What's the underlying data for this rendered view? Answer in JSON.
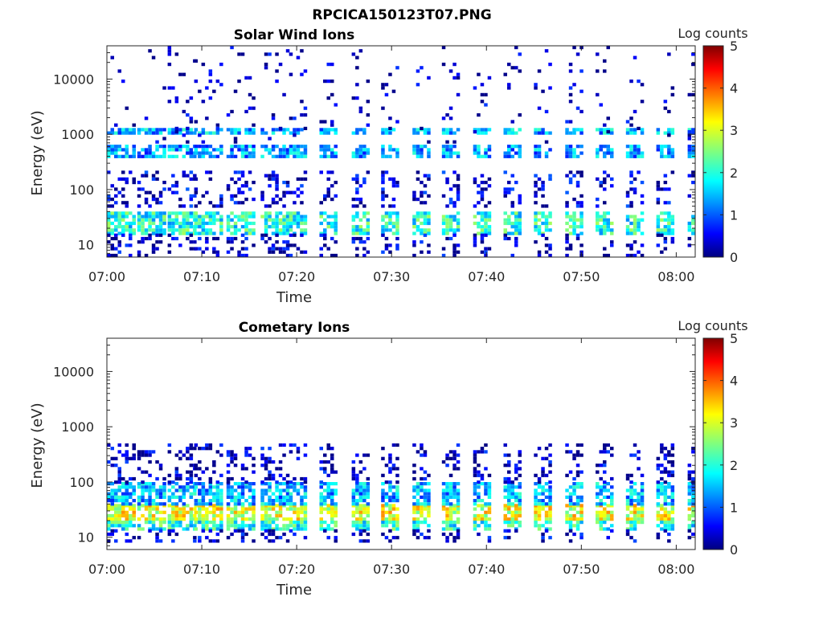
{
  "figure_title": "RPCICA150123T07.PNG",
  "chart_data": [
    {
      "type": "heatmap",
      "title": "Solar Wind Ions",
      "xlabel": "Time",
      "ylabel": "Energy (eV)",
      "x_range": [
        "07:00",
        "08:02"
      ],
      "x_ticks": [
        "07:00",
        "07:10",
        "07:20",
        "07:30",
        "07:40",
        "07:50",
        "08:00"
      ],
      "y_scale": "log",
      "y_range": [
        6,
        40000
      ],
      "y_ticks": [
        "10",
        "100",
        "1000",
        "10000"
      ],
      "colorbar": {
        "label": "Log counts",
        "range": [
          0,
          5
        ],
        "ticks": [
          "0",
          "1",
          "2",
          "3",
          "4",
          "5"
        ],
        "colormap": "jet"
      },
      "sweep_start_minutes": [
        0,
        3.2,
        6.4,
        9.2,
        12.6,
        16.2,
        19.2,
        22.4,
        25.8,
        28.9,
        32.2,
        35.3,
        38.6,
        41.8,
        45.0,
        48.3,
        51.5,
        54.7,
        57.9,
        61.2
      ],
      "bands": [
        {
          "e_min": 17,
          "e_max": 40,
          "log_counts": 2.0
        },
        {
          "e_min": 6,
          "e_max": 16,
          "log_counts": 0.3
        },
        {
          "e_min": 50,
          "e_max": 220,
          "log_counts": 0.4
        },
        {
          "e_min": 380,
          "e_max": 650,
          "log_counts": 1.4
        },
        {
          "e_min": 1100,
          "e_max": 1300,
          "log_counts": 1.5
        },
        {
          "e_min": 700,
          "e_max": 40000,
          "log_counts": 0.2
        }
      ]
    },
    {
      "type": "heatmap",
      "title": "Cometary Ions",
      "xlabel": "Time",
      "ylabel": "Energy (eV)",
      "x_range": [
        "07:00",
        "08:02"
      ],
      "x_ticks": [
        "07:00",
        "07:10",
        "07:20",
        "07:30",
        "07:40",
        "07:50",
        "08:00"
      ],
      "y_scale": "log",
      "y_range": [
        6,
        40000
      ],
      "y_ticks": [
        "10",
        "100",
        "1000",
        "10000"
      ],
      "colorbar": {
        "label": "Log counts",
        "range": [
          0,
          5
        ],
        "ticks": [
          "0",
          "1",
          "2",
          "3",
          "4",
          "5"
        ],
        "colormap": "jet"
      },
      "sweep_start_minutes": [
        0,
        3.2,
        6.4,
        9.2,
        12.6,
        16.2,
        19.2,
        22.4,
        25.8,
        28.9,
        32.2,
        35.3,
        38.6,
        41.8,
        45.0,
        48.3,
        51.5,
        54.7,
        57.9,
        61.2
      ],
      "bands": [
        {
          "e_min": 20,
          "e_max": 40,
          "log_counts": 3.0
        },
        {
          "e_min": 40,
          "e_max": 100,
          "log_counts": 1.5
        },
        {
          "e_min": 14,
          "e_max": 20,
          "log_counts": 2.0
        },
        {
          "e_min": 8,
          "e_max": 14,
          "log_counts": 0.3
        },
        {
          "e_min": 100,
          "e_max": 500,
          "log_counts": 0.3
        }
      ]
    }
  ]
}
